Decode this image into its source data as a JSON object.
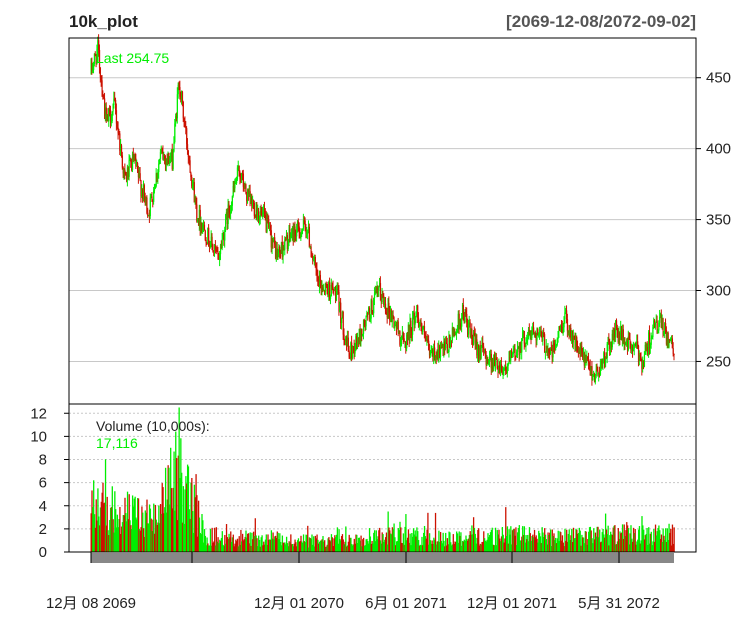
{
  "window": {
    "title": "10k_plot",
    "date_range": "[2069-12-08/2072-09-02]"
  },
  "colors": {
    "up": "#00ee00",
    "down": "#cc1100",
    "grid": "#c8c8c8",
    "frame": "#000000",
    "label": "#00ee00",
    "xaxis_band": "#888888"
  },
  "chart_data": [
    {
      "type": "candlestick",
      "last_label": "Last 254.75",
      "last_value": 254.75,
      "ylim": [
        220,
        478
      ],
      "yticks": [
        250,
        300,
        350,
        400,
        450
      ],
      "grid": true,
      "n_points": 690,
      "price_path_keypoints": [
        [
          0,
          455
        ],
        [
          8,
          470
        ],
        [
          18,
          418
        ],
        [
          28,
          430
        ],
        [
          40,
          378
        ],
        [
          50,
          392
        ],
        [
          68,
          355
        ],
        [
          82,
          395
        ],
        [
          96,
          392
        ],
        [
          104,
          448
        ],
        [
          112,
          410
        ],
        [
          125,
          355
        ],
        [
          150,
          322
        ],
        [
          160,
          350
        ],
        [
          175,
          385
        ],
        [
          185,
          365
        ],
        [
          205,
          350
        ],
        [
          220,
          325
        ],
        [
          238,
          340
        ],
        [
          255,
          345
        ],
        [
          268,
          305
        ],
        [
          290,
          298
        ],
        [
          305,
          255
        ],
        [
          318,
          268
        ],
        [
          340,
          300
        ],
        [
          355,
          282
        ],
        [
          370,
          262
        ],
        [
          385,
          285
        ],
        [
          400,
          255
        ],
        [
          420,
          258
        ],
        [
          440,
          285
        ],
        [
          450,
          265
        ],
        [
          470,
          252
        ],
        [
          490,
          245
        ],
        [
          510,
          265
        ],
        [
          525,
          272
        ],
        [
          545,
          255
        ],
        [
          560,
          282
        ],
        [
          575,
          258
        ],
        [
          595,
          240
        ],
        [
          605,
          250
        ],
        [
          620,
          272
        ],
        [
          635,
          262
        ],
        [
          645,
          258
        ],
        [
          652,
          250
        ],
        [
          662,
          270
        ],
        [
          672,
          278
        ],
        [
          690,
          254.75
        ]
      ]
    },
    {
      "type": "bar",
      "label": "Volume (10,000s):",
      "last_value_label": "17,116",
      "ylim": [
        0,
        12.8
      ],
      "yticks": [
        0,
        2,
        4,
        6,
        8,
        10,
        12
      ],
      "volume_profile_keypoints": [
        [
          0,
          4.5
        ],
        [
          20,
          4.0
        ],
        [
          60,
          3.2
        ],
        [
          80,
          2.8
        ],
        [
          95,
          7.5
        ],
        [
          110,
          6.5
        ],
        [
          125,
          3.5
        ],
        [
          135,
          1.5
        ],
        [
          200,
          1.2
        ],
        [
          280,
          1.0
        ],
        [
          340,
          1.6
        ],
        [
          420,
          1.3
        ],
        [
          500,
          1.6
        ],
        [
          560,
          1.4
        ],
        [
          620,
          1.6
        ],
        [
          690,
          1.6
        ]
      ]
    }
  ],
  "xaxis": {
    "tick_labels": [
      "12月 08 2069",
      "12月 01 2070",
      "6月 01 2071",
      "12月 01 2071",
      "5月 31 2072"
    ]
  }
}
